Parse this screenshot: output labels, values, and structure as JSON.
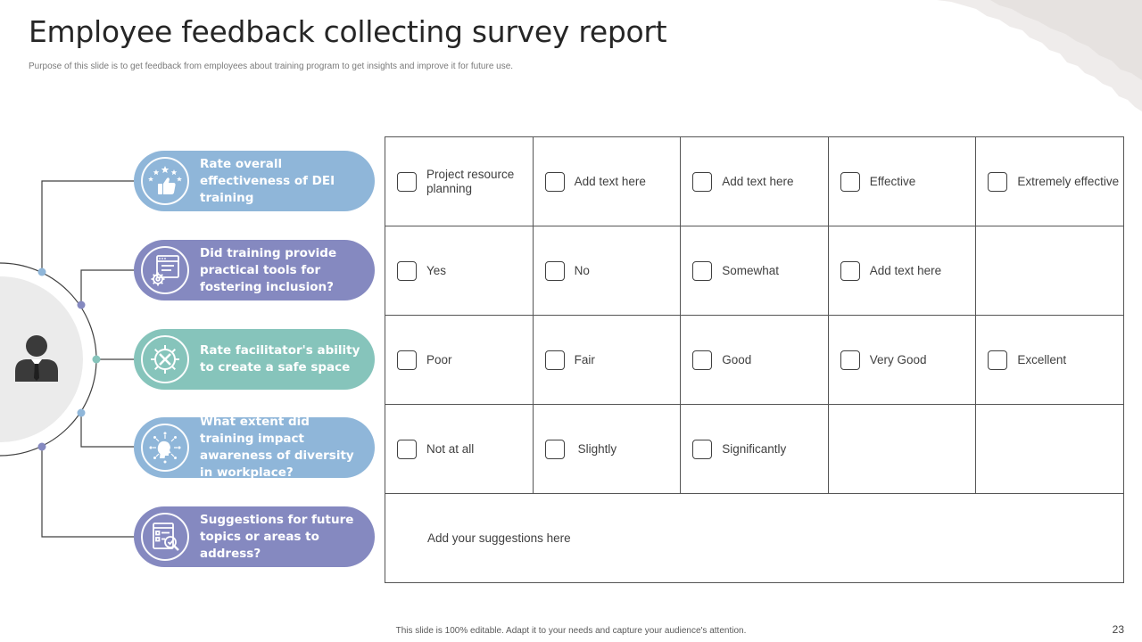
{
  "slide": {
    "title": "Employee feedback collecting survey report",
    "subtitle": "Purpose of this slide is to get feedback from employees about training program to get insights and improve it  for future use.",
    "footer": "This slide is 100% editable.  Adapt it to your needs and capture your audience's attention.",
    "page_number": "23"
  },
  "colors": {
    "blue": "#8fb6d9",
    "purple": "#8589c0",
    "teal": "#86c4bb",
    "dark_icon": "#3a3a3a"
  },
  "questions": [
    {
      "label": "Rate overall effectiveness of DEI training",
      "icon": "star-rating-thumbs-up-icon",
      "color": "blue"
    },
    {
      "label": "Did training provide practical tools for fostering inclusion?",
      "icon": "document-gear-icon",
      "color": "purple"
    },
    {
      "label": "Rate facilitator's ability to create a safe space",
      "icon": "gear-tools-icon",
      "color": "teal"
    },
    {
      "label": "What extent did training impact awareness of diversity in workplace?",
      "icon": "head-network-icon",
      "color": "blue"
    },
    {
      "label": "Suggestions for future topics or areas to address?",
      "icon": "checklist-search-icon",
      "color": "purple"
    }
  ],
  "answers": [
    [
      "Project resource planning",
      "Add text here",
      "Add text here",
      "Effective",
      "Extremely effective"
    ],
    [
      "Yes",
      "No",
      "Somewhat",
      "Add text here"
    ],
    [
      "Poor",
      "Fair",
      "Good",
      "Very Good",
      "Excellent"
    ],
    [
      "Not at all",
      "Slightly",
      "Significantly"
    ]
  ],
  "suggestions_placeholder": "Add your suggestions here"
}
